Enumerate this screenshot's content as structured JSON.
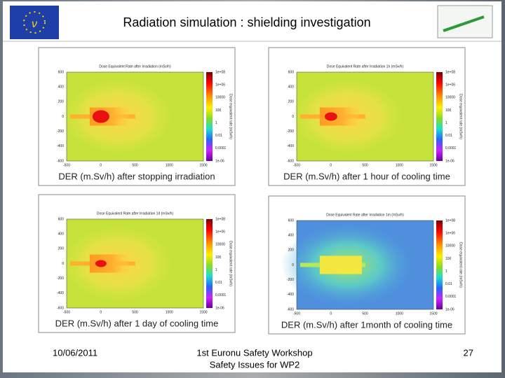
{
  "header": {
    "title": "Radiation simulation : shielding investigation"
  },
  "plot_axes": {
    "yticks": [
      "600",
      "400",
      "200",
      "0",
      "-200",
      "-400",
      "-600"
    ],
    "xticks": [
      "-500",
      "0",
      "500",
      "1000",
      "1500"
    ],
    "colorbar_ticks": [
      "1e+08",
      "1e+06",
      "10000",
      "100",
      "1",
      "0.01",
      "0.0001",
      "1e-06"
    ],
    "colorbar_title": "Dose equivalent rate (mSv/h)"
  },
  "panels": [
    {
      "plot_title": "Dose Equivalent Rate after Irradiation (mSv/h)",
      "caption": "DER (m.Sv/h) after stopping irradiation"
    },
    {
      "plot_title": "Dose Equivalent Rate after Irradiation 1h (mSv/h)",
      "caption": "DER (m.Sv/h) after 1 hour of cooling time"
    },
    {
      "plot_title": "Dose Equivalent Rate after Irradiation 1d (mSv/h)",
      "caption": "DER (m.Sv/h) after 1 day of cooling time"
    },
    {
      "plot_title": "Dose Equivalent Rate after Irradiation 1m (mSv/h)",
      "caption": "DER (m.Sv/h) after 1month of cooling time"
    }
  ],
  "footer": {
    "date": "10/06/2011",
    "event": "1st Euronu Safety Workshop",
    "subtitle": "Safety Issues for WP2",
    "page": "27"
  }
}
